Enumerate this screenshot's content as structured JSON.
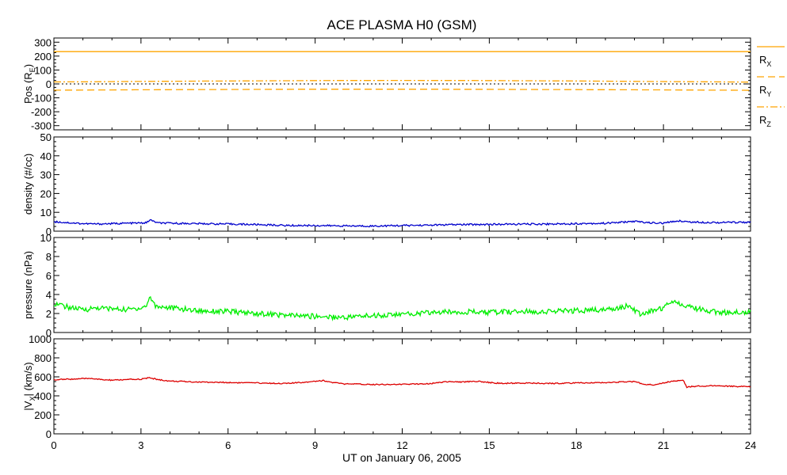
{
  "chart_data": {
    "type": "line",
    "title": "ACE PLASMA H0 (GSM)",
    "xlabel": "UT on January 06, 2005",
    "x_ticks": [
      0,
      3,
      6,
      9,
      12,
      15,
      18,
      21,
      24
    ],
    "xlim": [
      0,
      24
    ],
    "panels": [
      {
        "id": "pos",
        "ylabel": "Pos (R",
        "ylabel_sub": "E",
        "ylabel_close": ")",
        "ylim": [
          -330,
          330
        ],
        "y_ticks": [
          -300,
          -200,
          -100,
          0,
          100,
          200,
          300
        ],
        "zero_line": true,
        "series": [
          {
            "name": "R",
            "sub": "X",
            "color": "#FFA500",
            "dash": "solid",
            "x": [
              0,
              24
            ],
            "values": [
              232,
              232
            ]
          },
          {
            "name": "R",
            "sub": "Y",
            "color": "#FFA500",
            "dash": "dashed",
            "x": [
              0,
              3,
              6,
              9,
              12,
              15,
              18,
              21,
              24
            ],
            "values": [
              -45,
              -42,
              -40,
              -38,
              -38,
              -39,
              -41,
              -43,
              -46
            ]
          },
          {
            "name": "R",
            "sub": "Z",
            "color": "#FFA500",
            "dash": "dashdot",
            "x": [
              0,
              3,
              6,
              9,
              12,
              15,
              18,
              21,
              24
            ],
            "values": [
              14,
              18,
              21,
              24,
              25,
              24,
              21,
              17,
              13
            ]
          }
        ]
      },
      {
        "id": "density",
        "ylabel": "density (#/cc)",
        "ylim": [
          0,
          50
        ],
        "y_ticks": [
          0,
          10,
          20,
          30,
          40,
          50
        ],
        "series": [
          {
            "color": "#0000CC",
            "x": [
              0,
              0.5,
              1,
              1.5,
              2,
              2.5,
              3,
              3.2,
              3.3,
              3.6,
              4,
              5,
              6,
              7,
              8,
              9,
              10,
              11,
              12,
              13,
              14,
              15,
              16,
              17,
              18,
              19,
              20,
              20.5,
              21,
              21.5,
              22,
              23,
              24
            ],
            "values": [
              5,
              4.5,
              4,
              3.8,
              4,
              4.2,
              4.3,
              4.5,
              6,
              4.3,
              4.2,
              4,
              3.8,
              3.5,
              3,
              3,
              2.8,
              2.7,
              3,
              3.2,
              3.5,
              3.6,
              3.7,
              3.8,
              4,
              4.2,
              5.2,
              4.5,
              4.2,
              5.5,
              4.8,
              4.6,
              4.8
            ]
          }
        ]
      },
      {
        "id": "pressure",
        "ylabel": "pressure (nPa)",
        "ylim": [
          0,
          10
        ],
        "y_ticks": [
          0,
          2,
          4,
          6,
          8,
          10
        ],
        "series": [
          {
            "color": "#00EE00",
            "x": [
              0,
              0.3,
              0.6,
              1,
              1.5,
              2,
              2.5,
              3,
              3.2,
              3.3,
              3.5,
              4,
              5,
              6,
              7,
              8,
              9,
              10,
              11,
              12,
              13,
              14,
              15,
              16,
              17,
              18,
              19,
              19.8,
              20.2,
              20.5,
              21,
              21.3,
              21.6,
              22,
              22.5,
              23,
              24
            ],
            "values": [
              3.1,
              2.8,
              2.6,
              2.4,
              2.6,
              2.5,
              2.4,
              2.6,
              2.8,
              3.8,
              2.8,
              2.6,
              2.3,
              2.2,
              2,
              1.8,
              1.7,
              1.6,
              1.8,
              1.9,
              2.1,
              2.2,
              2.1,
              2.2,
              2.2,
              2.3,
              2.4,
              2.8,
              1.9,
              2.2,
              2.6,
              3.4,
              3,
              2.6,
              2.3,
              2.1,
              2.2
            ]
          }
        ]
      },
      {
        "id": "vx",
        "ylabel": "|V",
        "ylabel_sub": "X",
        "ylabel_close": "| (km/s)",
        "ylim": [
          0,
          1000
        ],
        "y_ticks": [
          0,
          200,
          400,
          600,
          800,
          1000
        ],
        "series": [
          {
            "color": "#DD0000",
            "x": [
              0,
              0.5,
              1,
              1.3,
              1.6,
              2,
              2.5,
              3,
              3.3,
              3.6,
              4,
              5,
              6,
              7,
              8,
              8.5,
              9,
              9.3,
              9.6,
              10,
              11,
              12,
              13,
              13.5,
              14,
              14.5,
              15,
              15.5,
              16,
              17,
              18,
              19,
              19.5,
              20,
              20.3,
              20.6,
              21,
              21.3,
              21.7,
              21.8,
              22,
              22.5,
              23,
              24
            ],
            "values": [
              570,
              575,
              580,
              585,
              570,
              565,
              570,
              575,
              590,
              570,
              555,
              545,
              540,
              535,
              530,
              540,
              555,
              560,
              540,
              525,
              520,
              520,
              530,
              550,
              545,
              555,
              540,
              530,
              535,
              530,
              535,
              540,
              545,
              550,
              525,
              515,
              535,
              555,
              560,
              490,
              500,
              505,
              505,
              495
            ]
          }
        ]
      }
    ]
  }
}
